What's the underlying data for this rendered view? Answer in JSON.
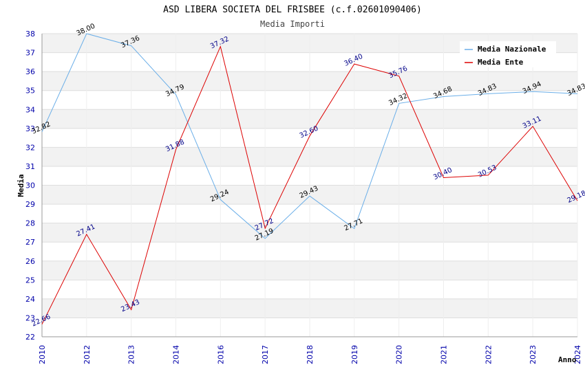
{
  "chart_data": {
    "type": "line",
    "title": "ASD LIBERA SOCIETA DEL FRISBEE (c.f.02601090406)",
    "subtitle": "Media Importi",
    "xlabel": "Anno",
    "ylabel": "Media",
    "x": [
      "2010",
      "2012",
      "2013",
      "2014",
      "2016",
      "2017",
      "2018",
      "2019",
      "2020",
      "2021",
      "2022",
      "2023",
      "2024"
    ],
    "ylim": [
      22,
      38
    ],
    "yticks": [
      22,
      23,
      24,
      25,
      26,
      27,
      28,
      29,
      30,
      31,
      32,
      33,
      34,
      35,
      36,
      37,
      38
    ],
    "grid": "horizontal, alternating bands",
    "legend_position": "top-right",
    "series": [
      {
        "name": "Media Nazionale",
        "color": "#6aaee8",
        "values": [
          32.82,
          38.0,
          37.36,
          34.79,
          29.24,
          27.19,
          29.43,
          27.71,
          34.32,
          34.68,
          34.83,
          34.94,
          34.83
        ],
        "labels": [
          "32.82",
          "38.00",
          "37.36",
          "34.79",
          "29.24",
          "27.19",
          "29.43",
          "27.71",
          "34.32",
          "34.68",
          "34.83",
          "34.94",
          "34.83"
        ]
      },
      {
        "name": "Media Ente",
        "color": "#dd0000",
        "values": [
          22.66,
          27.41,
          23.43,
          31.88,
          37.32,
          27.72,
          32.6,
          36.4,
          35.76,
          30.4,
          30.53,
          33.11,
          29.18
        ],
        "labels": [
          "22.66",
          "27.41",
          "23.43",
          "31.88",
          "37.32",
          "27.72",
          "32.60",
          "36.40",
          "35.76",
          "30.40",
          "30.53",
          "33.11",
          "29.18"
        ]
      }
    ]
  }
}
